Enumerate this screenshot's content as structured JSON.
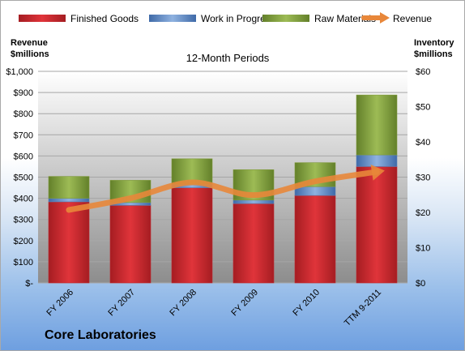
{
  "chart_data": {
    "type": "bar",
    "stacked": true,
    "subtitle": "12-Month Periods",
    "company": "Core Laboratories",
    "categories": [
      "FY 2006",
      "FY 2007",
      "FY 2008",
      "FY 2009",
      "FY 2010",
      "TTM 9-2011"
    ],
    "series": [
      {
        "name": "Finished Goods",
        "axis": "right",
        "color": "#c0272d",
        "values": [
          23,
          22,
          27,
          22.5,
          24.8,
          33
        ]
      },
      {
        "name": "Work in Progress",
        "axis": "right",
        "color": "#5a82b8",
        "values": [
          1,
          0.8,
          1,
          1,
          2.5,
          3.3
        ]
      },
      {
        "name": "Raw Materials",
        "axis": "right",
        "color": "#7f9a3a",
        "values": [
          6.2,
          6.3,
          7.2,
          8.6,
          6.8,
          17
        ]
      },
      {
        "name": "Revenue",
        "axis": "left",
        "type": "line",
        "color": "#e8873a",
        "values": [
          345,
          400,
          475,
          415,
          480,
          525
        ]
      }
    ],
    "left_axis": {
      "label_line1": "Revenue",
      "label_line2": "$millions",
      "ylim": [
        0,
        1000
      ],
      "ticks": [
        "$-",
        "$100",
        "$200",
        "$300",
        "$400",
        "$500",
        "$600",
        "$700",
        "$800",
        "$900",
        "$1,000"
      ]
    },
    "right_axis": {
      "label_line1": "Inventory",
      "label_line2": "$millions",
      "ylim": [
        0,
        60
      ],
      "ticks": [
        "$0",
        "$10",
        "$20",
        "$30",
        "$40",
        "$50",
        "$60"
      ]
    },
    "grid": true,
    "legend_position": "top"
  }
}
